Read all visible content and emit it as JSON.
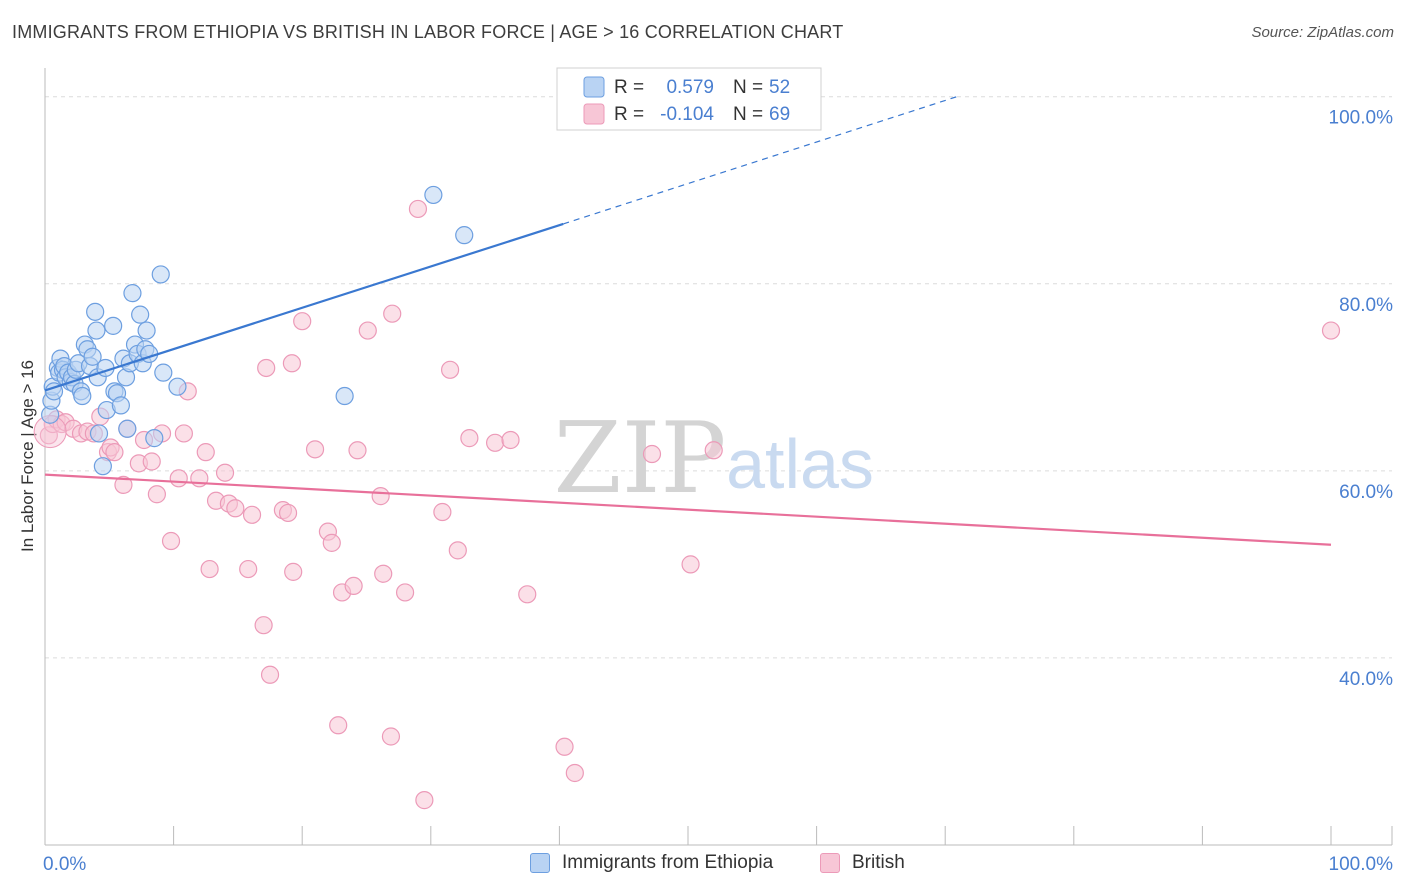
{
  "title": "IMMIGRANTS FROM ETHIOPIA VS BRITISH IN LABOR FORCE | AGE > 16 CORRELATION CHART",
  "source": "Source: ZipAtlas.com",
  "watermark": {
    "zip": "ZIP",
    "atlas": "atlas"
  },
  "colors": {
    "blue": "#3a78d0",
    "blue_fill": "#b9d3f3",
    "blue_stroke": "#6d9fe0",
    "pink": "#e8709a",
    "pink_fill": "#f7c6d6",
    "pink_stroke": "#ec9ab8",
    "tick_text": "#4a7fd0",
    "grid": "#dcdcdc"
  },
  "legend_top": {
    "rows": [
      {
        "r_label": "R =",
        "r_value": "0.579",
        "n_label": "N =",
        "n_value": "52",
        "color": "blue"
      },
      {
        "r_label": "R =",
        "r_value": "-0.104",
        "n_label": "N =",
        "n_value": "69",
        "color": "pink"
      }
    ]
  },
  "legend_bottom": [
    {
      "label": "Immigrants from Ethiopia",
      "color": "blue"
    },
    {
      "label": "British",
      "color": "pink"
    }
  ],
  "chart_data": {
    "type": "scatter",
    "title": "IMMIGRANTS FROM ETHIOPIA VS BRITISH IN LABOR FORCE | AGE > 16 CORRELATION CHART",
    "xlabel": "",
    "ylabel": "In Labor Force | Age > 16",
    "xlim": [
      0,
      100
    ],
    "ylim": [
      20,
      102
    ],
    "x_tick_labels": [
      "0.0%",
      "100.0%"
    ],
    "y_ticks": [
      40,
      60,
      80,
      100
    ],
    "y_tick_labels": [
      "40.0%",
      "60.0%",
      "80.0%",
      "100.0%"
    ],
    "grid": true,
    "series": [
      {
        "name": "Immigrants from Ethiopia",
        "color": "blue",
        "points": [
          [
            0.4,
            66.0
          ],
          [
            0.5,
            67.5
          ],
          [
            0.6,
            69.0
          ],
          [
            0.7,
            68.5
          ],
          [
            1.0,
            71.0
          ],
          [
            1.1,
            70.5
          ],
          [
            1.2,
            72.0
          ],
          [
            1.4,
            70.8
          ],
          [
            1.5,
            71.2
          ],
          [
            1.6,
            70.0
          ],
          [
            1.8,
            70.5
          ],
          [
            2.0,
            69.5
          ],
          [
            2.1,
            70.0
          ],
          [
            2.3,
            69.3
          ],
          [
            2.4,
            70.8
          ],
          [
            2.6,
            71.5
          ],
          [
            2.8,
            68.5
          ],
          [
            2.9,
            68.0
          ],
          [
            3.1,
            73.5
          ],
          [
            3.3,
            73.0
          ],
          [
            3.5,
            71.2
          ],
          [
            3.7,
            72.2
          ],
          [
            3.9,
            77.0
          ],
          [
            4.0,
            75.0
          ],
          [
            4.1,
            70.0
          ],
          [
            4.2,
            64.0
          ],
          [
            4.5,
            60.5
          ],
          [
            4.7,
            71.0
          ],
          [
            4.8,
            66.5
          ],
          [
            5.3,
            75.5
          ],
          [
            5.4,
            68.5
          ],
          [
            5.6,
            68.3
          ],
          [
            5.9,
            67.0
          ],
          [
            6.1,
            72.0
          ],
          [
            6.3,
            70.0
          ],
          [
            6.4,
            64.5
          ],
          [
            6.6,
            71.5
          ],
          [
            6.8,
            79.0
          ],
          [
            7.0,
            73.5
          ],
          [
            7.2,
            72.5
          ],
          [
            7.4,
            76.7
          ],
          [
            7.6,
            71.5
          ],
          [
            7.8,
            73.0
          ],
          [
            7.9,
            75.0
          ],
          [
            8.1,
            72.5
          ],
          [
            8.5,
            63.5
          ],
          [
            9.0,
            81.0
          ],
          [
            9.2,
            70.5
          ],
          [
            10.3,
            69.0
          ],
          [
            23.3,
            68.0
          ],
          [
            30.2,
            89.5
          ],
          [
            32.6,
            85.2
          ]
        ]
      },
      {
        "name": "British",
        "color": "pink",
        "points": [
          [
            0.3,
            63.8
          ],
          [
            0.6,
            65.0
          ],
          [
            0.9,
            65.5
          ],
          [
            1.3,
            65.0
          ],
          [
            1.6,
            65.2
          ],
          [
            2.2,
            64.5
          ],
          [
            2.8,
            64.0
          ],
          [
            3.3,
            64.2
          ],
          [
            3.8,
            64.0
          ],
          [
            4.3,
            65.8
          ],
          [
            4.9,
            62.0
          ],
          [
            5.1,
            62.5
          ],
          [
            5.4,
            62.0
          ],
          [
            6.1,
            58.5
          ],
          [
            6.4,
            64.5
          ],
          [
            7.3,
            60.8
          ],
          [
            7.7,
            63.3
          ],
          [
            8.3,
            61.0
          ],
          [
            8.7,
            57.5
          ],
          [
            9.1,
            64.0
          ],
          [
            9.8,
            52.5
          ],
          [
            10.4,
            59.2
          ],
          [
            10.8,
            64.0
          ],
          [
            11.1,
            68.5
          ],
          [
            12.0,
            59.2
          ],
          [
            12.5,
            62.0
          ],
          [
            12.8,
            49.5
          ],
          [
            13.3,
            56.8
          ],
          [
            14.0,
            59.8
          ],
          [
            14.3,
            56.5
          ],
          [
            14.8,
            56.0
          ],
          [
            15.8,
            49.5
          ],
          [
            16.1,
            55.3
          ],
          [
            17.0,
            43.5
          ],
          [
            17.2,
            71.0
          ],
          [
            17.5,
            38.2
          ],
          [
            18.5,
            55.8
          ],
          [
            18.9,
            55.5
          ],
          [
            19.2,
            71.5
          ],
          [
            19.3,
            49.2
          ],
          [
            20.0,
            76.0
          ],
          [
            21.0,
            62.3
          ],
          [
            22.0,
            53.5
          ],
          [
            22.3,
            52.3
          ],
          [
            22.8,
            32.8
          ],
          [
            23.1,
            47.0
          ],
          [
            24.0,
            47.7
          ],
          [
            24.3,
            62.2
          ],
          [
            25.1,
            75.0
          ],
          [
            26.1,
            57.3
          ],
          [
            26.3,
            49.0
          ],
          [
            26.9,
            31.6
          ],
          [
            27.0,
            76.8
          ],
          [
            28.0,
            47.0
          ],
          [
            29.0,
            88.0
          ],
          [
            29.5,
            24.8
          ],
          [
            30.9,
            55.6
          ],
          [
            31.5,
            70.8
          ],
          [
            32.1,
            51.5
          ],
          [
            33.0,
            63.5
          ],
          [
            35.0,
            63.0
          ],
          [
            36.2,
            63.3
          ],
          [
            37.5,
            46.8
          ],
          [
            40.4,
            30.5
          ],
          [
            41.2,
            27.7
          ],
          [
            47.2,
            61.8
          ],
          [
            50.2,
            50.0
          ],
          [
            52.0,
            62.2
          ],
          [
            100,
            75.0
          ]
        ]
      }
    ],
    "trend_lines": [
      {
        "series": "Immigrants from Ethiopia",
        "solid": [
          [
            0,
            68.6
          ],
          [
            40.3,
            86.4
          ]
        ],
        "dashed": [
          [
            40.3,
            86.4
          ],
          [
            70.9,
            100
          ]
        ]
      },
      {
        "series": "British",
        "solid": [
          [
            0,
            59.6
          ],
          [
            100,
            52.1
          ]
        ]
      }
    ]
  }
}
